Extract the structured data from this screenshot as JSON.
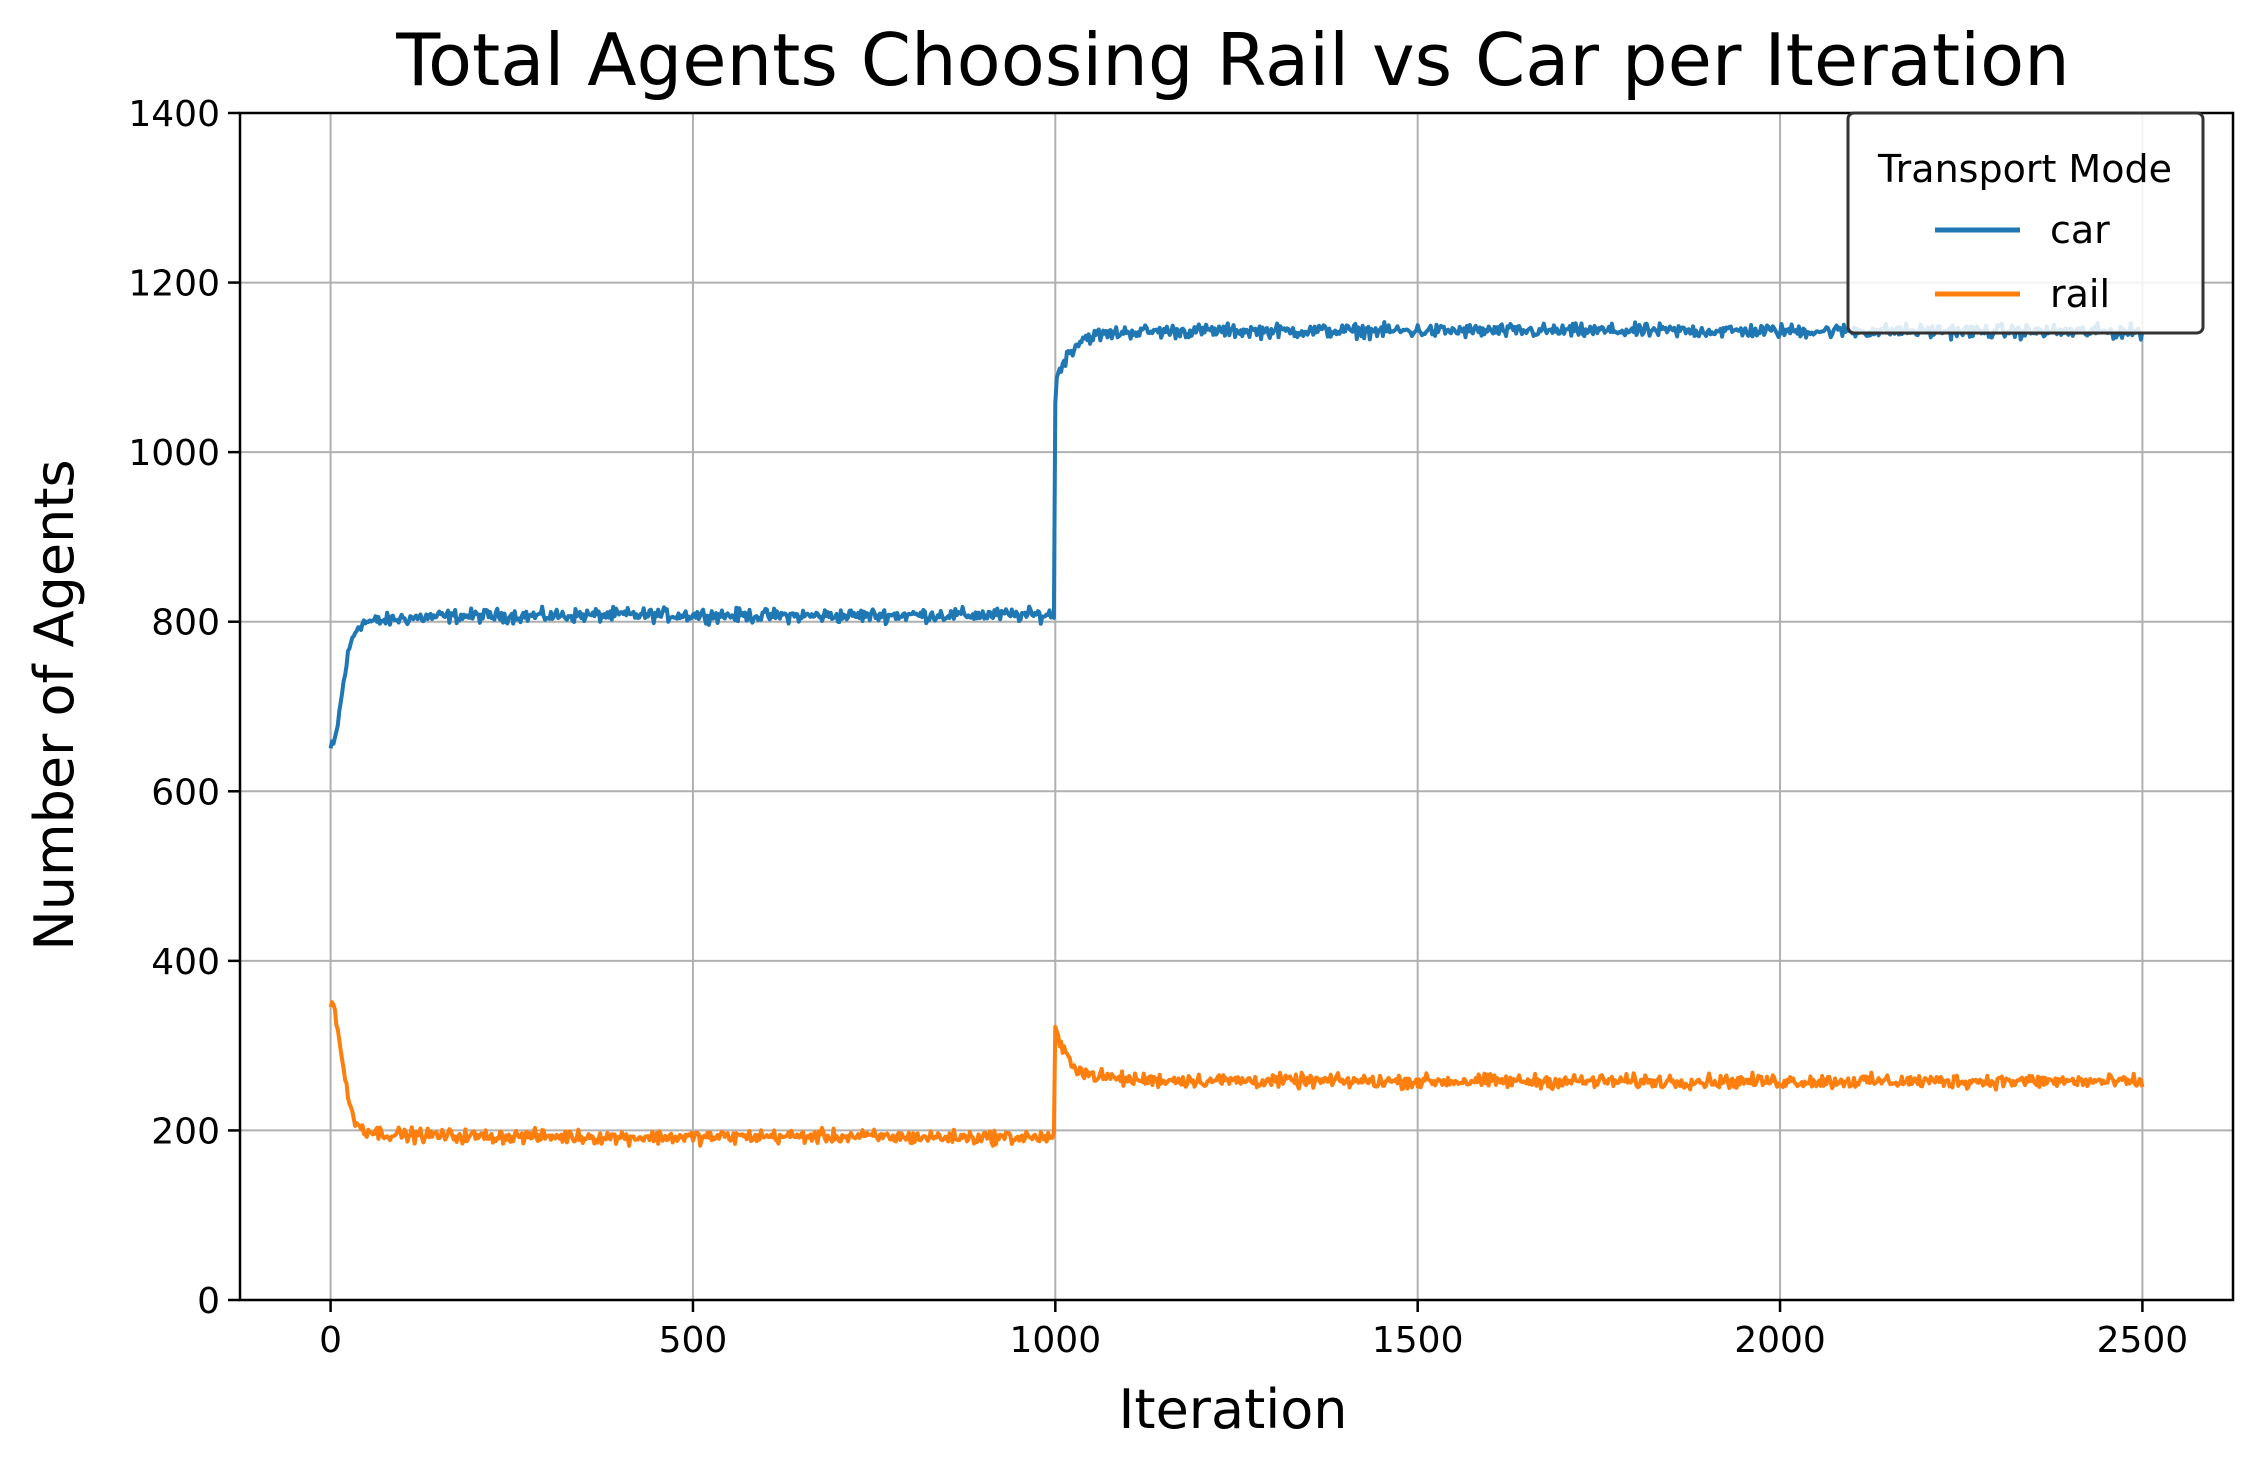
{
  "chart_data": {
    "type": "line",
    "title": "Total Agents Choosing Rail vs Car per Iteration",
    "xlabel": "Iteration",
    "ylabel": "Number of Agents",
    "xlim": [
      -125,
      2625
    ],
    "ylim": [
      0,
      1400
    ],
    "xticks": [
      "0",
      "500",
      "1000",
      "1500",
      "2000",
      "2500"
    ],
    "xtick_values": [
      0,
      500,
      1000,
      1500,
      2000,
      2500
    ],
    "yticks": [
      "0",
      "200",
      "400",
      "600",
      "800",
      "1000",
      "1200",
      "1400"
    ],
    "ytick_values": [
      0,
      200,
      400,
      600,
      800,
      1000,
      1200,
      1400
    ],
    "grid": true,
    "legend": {
      "title": "Transport Mode",
      "placement": "top-right"
    },
    "series": [
      {
        "name": "car",
        "color": "#1f77b4",
        "x": [
          0,
          5,
          10,
          15,
          20,
          25,
          30,
          35,
          40,
          50,
          60,
          80,
          100,
          150,
          200,
          300,
          400,
          500,
          600,
          700,
          800,
          900,
          995,
          999,
          1000,
          1002,
          1005,
          1010,
          1020,
          1030,
          1040,
          1060,
          1080,
          1100,
          1200,
          1400,
          1600,
          1800,
          2000,
          2200,
          2400,
          2500
        ],
        "y": [
          650,
          655,
          680,
          710,
          740,
          765,
          780,
          790,
          797,
          800,
          800,
          802,
          804,
          806,
          807,
          807,
          808,
          808,
          807,
          807,
          808,
          808,
          808,
          810,
          1060,
          1085,
          1095,
          1105,
          1118,
          1128,
          1135,
          1138,
          1140,
          1142,
          1143,
          1143,
          1143,
          1143,
          1143,
          1143,
          1142,
          1142
        ],
        "noise": 8
      },
      {
        "name": "rail",
        "color": "#ff7f0e",
        "x": [
          0,
          5,
          10,
          15,
          20,
          25,
          30,
          35,
          40,
          50,
          60,
          80,
          100,
          150,
          200,
          300,
          400,
          500,
          600,
          700,
          800,
          900,
          995,
          999,
          1000,
          1002,
          1005,
          1010,
          1020,
          1030,
          1040,
          1060,
          1080,
          1100,
          1200,
          1400,
          1600,
          1800,
          2000,
          2200,
          2400,
          2500
        ],
        "y": [
          350,
          345,
          320,
          290,
          260,
          235,
          220,
          210,
          205,
          200,
          198,
          196,
          195,
          194,
          193,
          193,
          192,
          192,
          193,
          193,
          192,
          192,
          192,
          190,
          320,
          315,
          305,
          295,
          283,
          274,
          268,
          264,
          262,
          260,
          259,
          258,
          258,
          258,
          258,
          258,
          258,
          257
        ],
        "noise": 8
      }
    ]
  }
}
